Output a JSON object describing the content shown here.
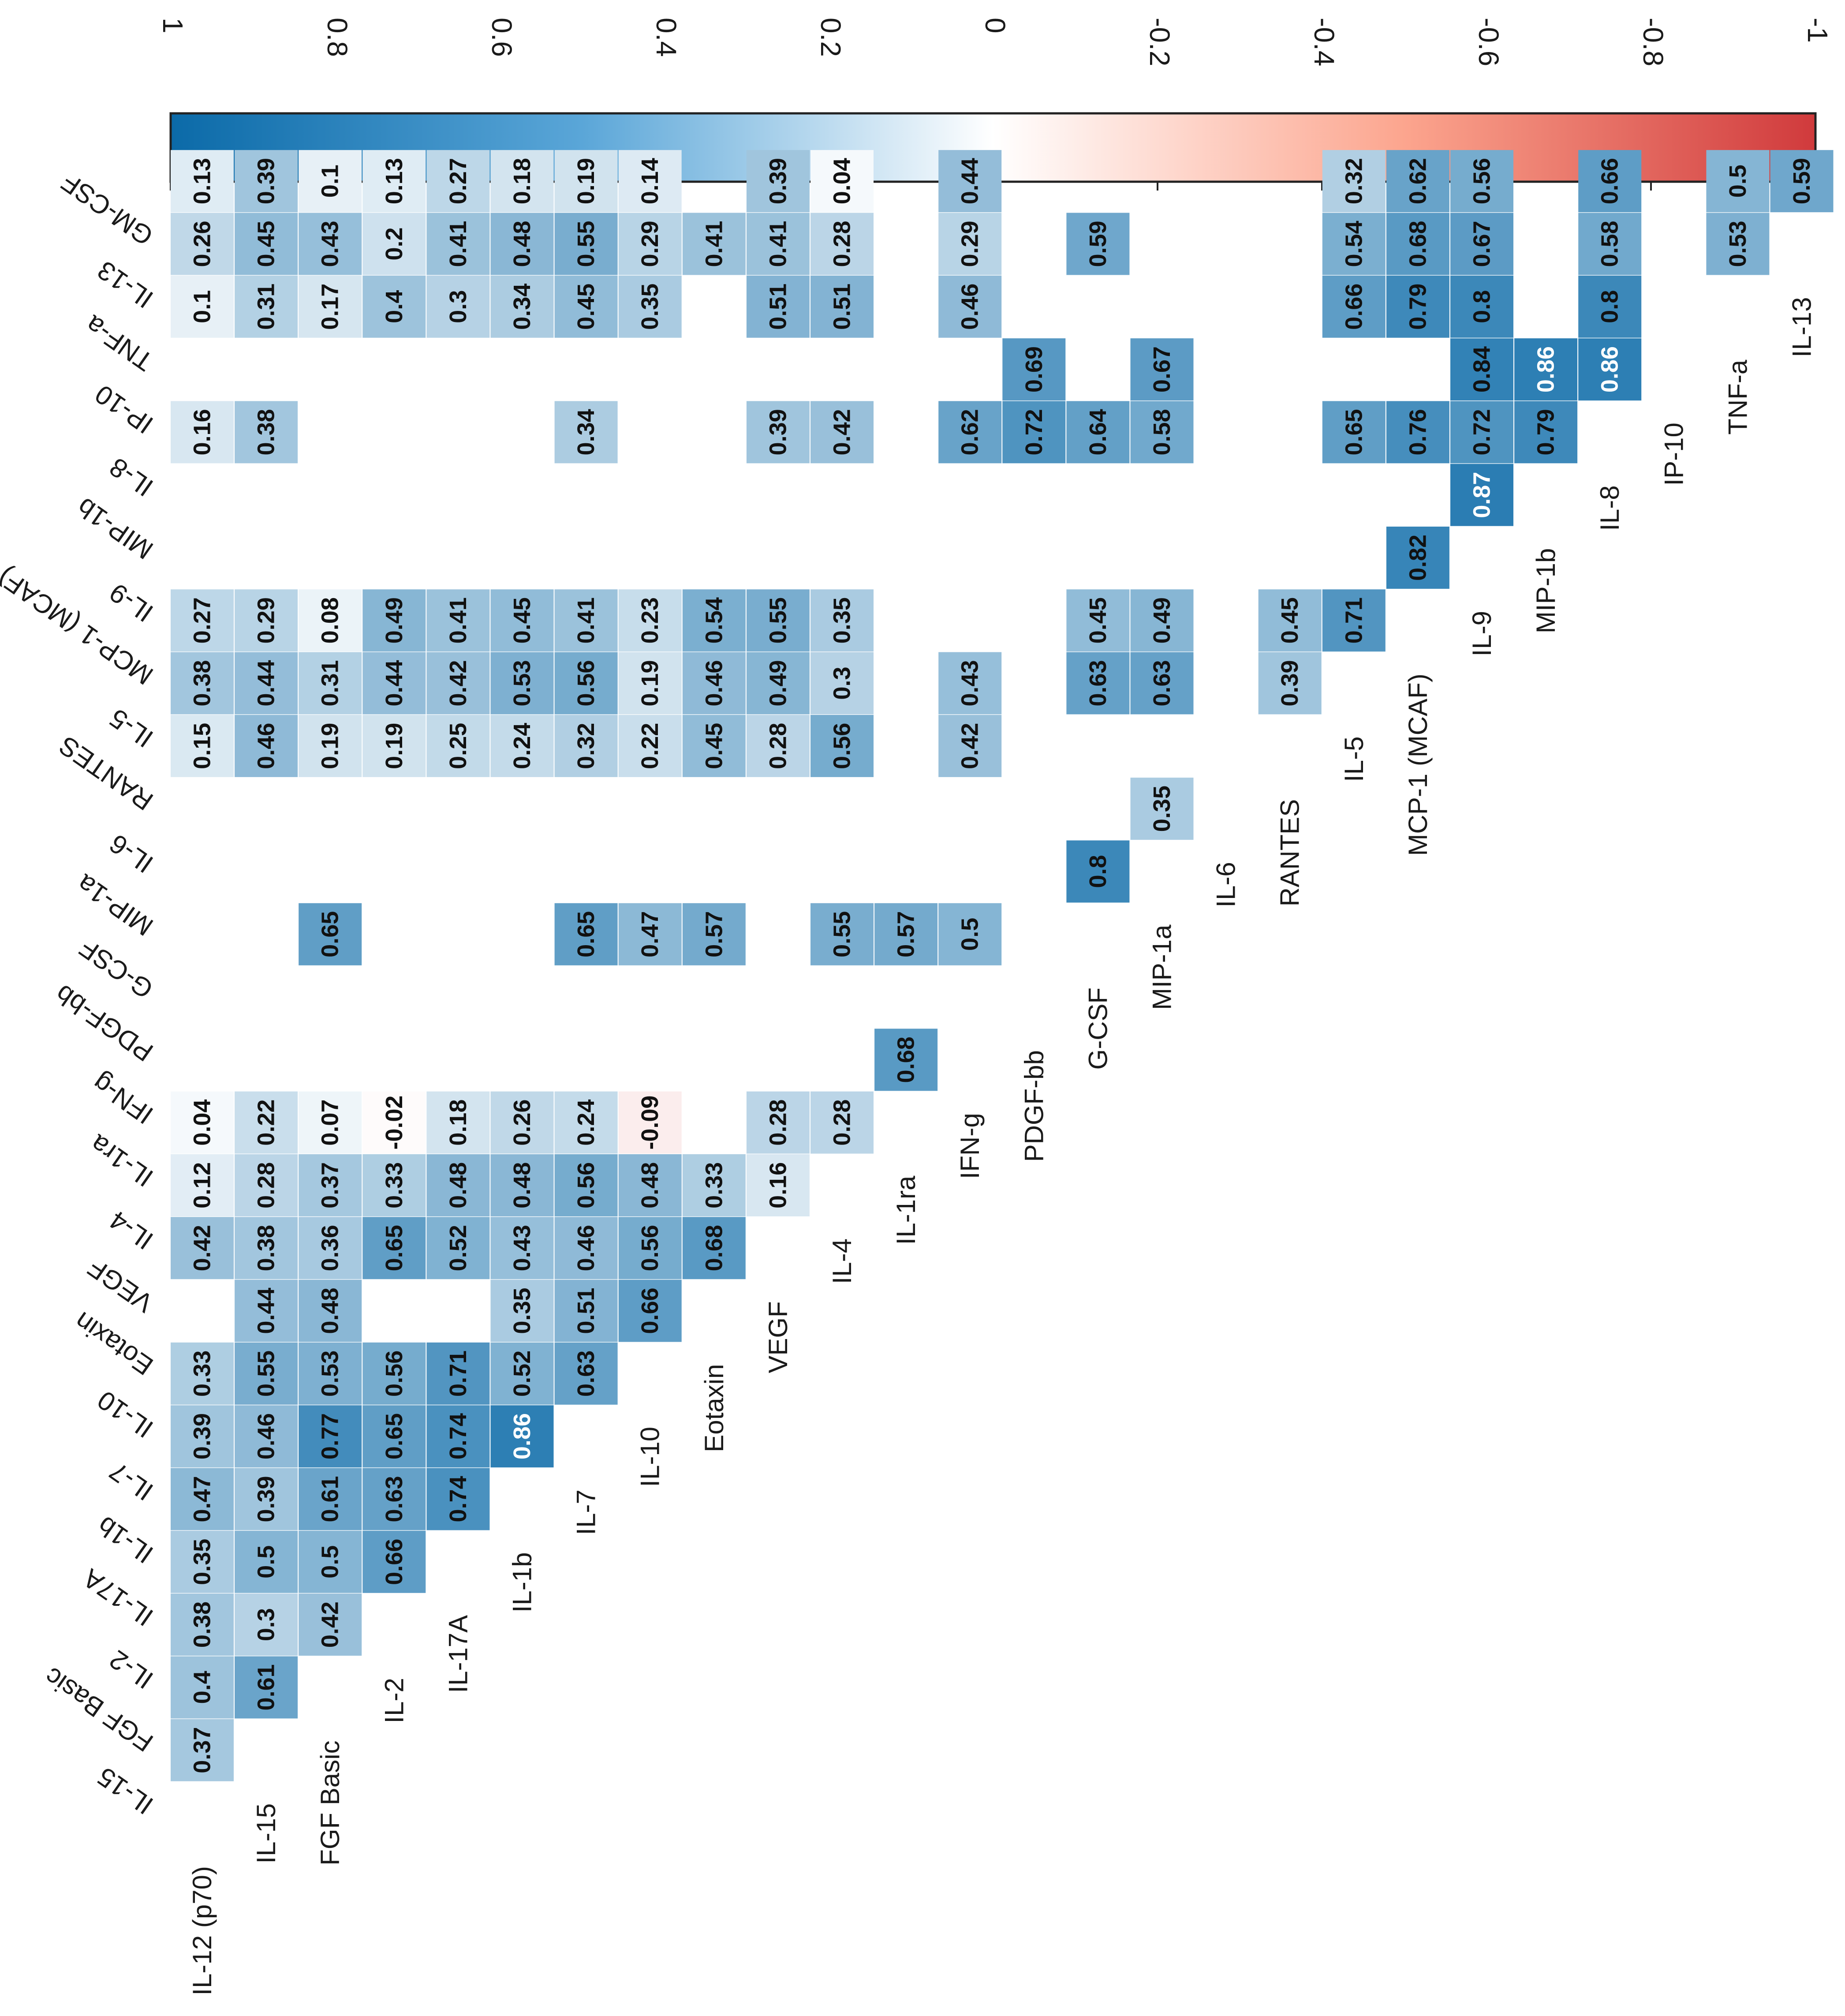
{
  "chart_data": {
    "type": "heatmap",
    "title": "",
    "orientation": "rotated-90-clockwise",
    "variables": [
      "IL-12 (p70)",
      "IL-15",
      "FGF Basic",
      "IL-2",
      "IL-17A",
      "IL-1b",
      "IL-7",
      "IL-10",
      "Eotaxin",
      "VEGF",
      "IL-4",
      "IL-1ra",
      "IFN-g",
      "PDGF-bb",
      "G-CSF",
      "MIP-1a",
      "IL-6",
      "RANTES",
      "IL-5",
      "MCP-1 (MCAF)",
      "IL-9",
      "MIP-1b",
      "IL-8",
      "IP-10",
      "TNF-a",
      "IL-13",
      "GM-CSF"
    ],
    "diagonal_labels": [
      "IL-12 (p70)",
      "IL-15",
      "FGF Basic",
      "IL-2",
      "IL-17A",
      "IL-1b",
      "IL-7",
      "IL-10",
      "Eotaxin",
      "VEGF",
      "IL-4",
      "IL-1ra",
      "IFN-g",
      "PDGF-bb",
      "G-CSF",
      "MIP-1a",
      "IL-6",
      "RANTES",
      "IL-5",
      "MCP-1 (MCAF)",
      "IL-9",
      "MIP-1b",
      "IL-8",
      "IP-10",
      "TNF-a",
      "IL-13"
    ],
    "column_labels": [
      "IL-15",
      "FGF Basic",
      "IL-2",
      "IL-17A",
      "IL-1b",
      "IL-7",
      "IL-10",
      "Eotaxin",
      "VEGF",
      "IL-4",
      "IL-1ra",
      "IFN-g",
      "PDGF-bb",
      "G-CSF",
      "MIP-1a",
      "IL-6",
      "RANTES",
      "IL-5",
      "MCP-1 (MCAF)",
      "IL-9",
      "MIP-1b",
      "IL-8",
      "IP-10",
      "TNF-a",
      "IL-13",
      "GM-CSF"
    ],
    "column_labels_rendered": [
      "IL-15",
      "FGF Basic",
      "IL-2",
      "IL-17A",
      "IL-1b",
      "IL-7",
      "IL-10",
      "Eotaxin",
      "VEGF",
      "IL-4",
      "IL-1ra",
      "IFN-g",
      "PDGF-bb",
      "G-CSF",
      "MIP-1a",
      "IL-6",
      "RANTES",
      "IL-5",
      "MCP-1 (MCAF)",
      "IL-9",
      "MIP-1b",
      "IL-8",
      "IP-10",
      "TNF-a",
      "IL-13",
      "GM-CSF"
    ],
    "colorbar": {
      "ticks": [
        "1",
        "0.8",
        "0.6",
        "0.4",
        "0.2",
        "0",
        "-0.2",
        "-0.4",
        "-0.6",
        "-0.8",
        "-1"
      ],
      "range": [
        -1,
        1
      ],
      "colors": {
        "positive": "#0b6aa8",
        "mid": "#ffffff",
        "negative": "#d03a3c"
      }
    },
    "cells": [
      {
        "row": "IL-12 (p70)",
        "col": "IL-15",
        "value": 0.37
      },
      {
        "row": "IL-12 (p70)",
        "col": "FGF Basic",
        "value": 0.4
      },
      {
        "row": "IL-12 (p70)",
        "col": "IL-2",
        "value": 0.38
      },
      {
        "row": "IL-12 (p70)",
        "col": "IL-17A",
        "value": 0.35
      },
      {
        "row": "IL-12 (p70)",
        "col": "IL-1b",
        "value": 0.47
      },
      {
        "row": "IL-12 (p70)",
        "col": "IL-7",
        "value": 0.39
      },
      {
        "row": "IL-12 (p70)",
        "col": "IL-10",
        "value": 0.33
      },
      {
        "row": "IL-12 (p70)",
        "col": "VEGF",
        "value": 0.42
      },
      {
        "row": "IL-12 (p70)",
        "col": "IL-4",
        "value": 0.12
      },
      {
        "row": "IL-12 (p70)",
        "col": "IL-1ra",
        "value": 0.04
      },
      {
        "row": "IL-12 (p70)",
        "col": "RANTES",
        "value": 0.15
      },
      {
        "row": "IL-12 (p70)",
        "col": "IL-5",
        "value": 0.38
      },
      {
        "row": "IL-12 (p70)",
        "col": "MCP-1 (MCAF)",
        "value": 0.27
      },
      {
        "row": "IL-12 (p70)",
        "col": "IL-8",
        "value": 0.16
      },
      {
        "row": "IL-12 (p70)",
        "col": "TNF-a",
        "value": 0.1
      },
      {
        "row": "IL-12 (p70)",
        "col": "IL-13",
        "value": 0.26
      },
      {
        "row": "IL-12 (p70)",
        "col": "GM-CSF",
        "value": 0.13
      },
      {
        "row": "IL-15",
        "col": "FGF Basic",
        "value": 0.61
      },
      {
        "row": "IL-15",
        "col": "IL-2",
        "value": 0.3
      },
      {
        "row": "IL-15",
        "col": "IL-17A",
        "value": 0.5
      },
      {
        "row": "IL-15",
        "col": "IL-1b",
        "value": 0.39
      },
      {
        "row": "IL-15",
        "col": "IL-7",
        "value": 0.46
      },
      {
        "row": "IL-15",
        "col": "IL-10",
        "value": 0.55
      },
      {
        "row": "IL-15",
        "col": "Eotaxin",
        "value": 0.44
      },
      {
        "row": "IL-15",
        "col": "VEGF",
        "value": 0.38
      },
      {
        "row": "IL-15",
        "col": "IL-4",
        "value": 0.28
      },
      {
        "row": "IL-15",
        "col": "IL-1ra",
        "value": 0.22
      },
      {
        "row": "IL-15",
        "col": "RANTES",
        "value": 0.46
      },
      {
        "row": "IL-15",
        "col": "IL-5",
        "value": 0.44
      },
      {
        "row": "IL-15",
        "col": "MCP-1 (MCAF)",
        "value": 0.29
      },
      {
        "row": "IL-15",
        "col": "IL-8",
        "value": 0.38
      },
      {
        "row": "IL-15",
        "col": "TNF-a",
        "value": 0.31
      },
      {
        "row": "IL-15",
        "col": "IL-13",
        "value": 0.45
      },
      {
        "row": "IL-15",
        "col": "GM-CSF",
        "value": 0.39
      },
      {
        "row": "FGF Basic",
        "col": "IL-2",
        "value": 0.42
      },
      {
        "row": "FGF Basic",
        "col": "IL-17A",
        "value": 0.5
      },
      {
        "row": "FGF Basic",
        "col": "IL-1b",
        "value": 0.61
      },
      {
        "row": "FGF Basic",
        "col": "IL-7",
        "value": 0.77
      },
      {
        "row": "FGF Basic",
        "col": "IL-10",
        "value": 0.53
      },
      {
        "row": "FGF Basic",
        "col": "Eotaxin",
        "value": 0.48
      },
      {
        "row": "FGF Basic",
        "col": "VEGF",
        "value": 0.36
      },
      {
        "row": "FGF Basic",
        "col": "IL-4",
        "value": 0.37
      },
      {
        "row": "FGF Basic",
        "col": "IL-1ra",
        "value": 0.07
      },
      {
        "row": "FGF Basic",
        "col": "G-CSF",
        "value": 0.65
      },
      {
        "row": "FGF Basic",
        "col": "RANTES",
        "value": 0.19
      },
      {
        "row": "FGF Basic",
        "col": "IL-5",
        "value": 0.31
      },
      {
        "row": "FGF Basic",
        "col": "MCP-1 (MCAF)",
        "value": 0.08
      },
      {
        "row": "FGF Basic",
        "col": "TNF-a",
        "value": 0.17
      },
      {
        "row": "FGF Basic",
        "col": "IL-13",
        "value": 0.43
      },
      {
        "row": "FGF Basic",
        "col": "GM-CSF",
        "value": 0.1
      },
      {
        "row": "IL-2",
        "col": "IL-17A",
        "value": 0.66
      },
      {
        "row": "IL-2",
        "col": "IL-1b",
        "value": 0.63
      },
      {
        "row": "IL-2",
        "col": "IL-7",
        "value": 0.65
      },
      {
        "row": "IL-2",
        "col": "IL-10",
        "value": 0.56
      },
      {
        "row": "IL-2",
        "col": "VEGF",
        "value": 0.65
      },
      {
        "row": "IL-2",
        "col": "IL-4",
        "value": 0.33
      },
      {
        "row": "IL-2",
        "col": "IL-1ra",
        "value": -0.02
      },
      {
        "row": "IL-2",
        "col": "RANTES",
        "value": 0.19
      },
      {
        "row": "IL-2",
        "col": "IL-5",
        "value": 0.44
      },
      {
        "row": "IL-2",
        "col": "MCP-1 (MCAF)",
        "value": 0.49
      },
      {
        "row": "IL-2",
        "col": "TNF-a",
        "value": 0.4
      },
      {
        "row": "IL-2",
        "col": "IL-13",
        "value": 0.2
      },
      {
        "row": "IL-2",
        "col": "GM-CSF",
        "value": 0.13
      },
      {
        "row": "IL-17A",
        "col": "IL-1b",
        "value": 0.74
      },
      {
        "row": "IL-17A",
        "col": "IL-7",
        "value": 0.74
      },
      {
        "row": "IL-17A",
        "col": "IL-10",
        "value": 0.71
      },
      {
        "row": "IL-17A",
        "col": "VEGF",
        "value": 0.52
      },
      {
        "row": "IL-17A",
        "col": "IL-4",
        "value": 0.48
      },
      {
        "row": "IL-17A",
        "col": "IL-1ra",
        "value": 0.18
      },
      {
        "row": "IL-17A",
        "col": "RANTES",
        "value": 0.25
      },
      {
        "row": "IL-17A",
        "col": "IL-5",
        "value": 0.42
      },
      {
        "row": "IL-17A",
        "col": "MCP-1 (MCAF)",
        "value": 0.41
      },
      {
        "row": "IL-17A",
        "col": "TNF-a",
        "value": 0.3
      },
      {
        "row": "IL-17A",
        "col": "IL-13",
        "value": 0.41
      },
      {
        "row": "IL-17A",
        "col": "GM-CSF",
        "value": 0.27
      },
      {
        "row": "IL-1b",
        "col": "IL-7",
        "value": 0.86
      },
      {
        "row": "IL-1b",
        "col": "IL-10",
        "value": 0.52
      },
      {
        "row": "IL-1b",
        "col": "Eotaxin",
        "value": 0.35
      },
      {
        "row": "IL-1b",
        "col": "VEGF",
        "value": 0.43
      },
      {
        "row": "IL-1b",
        "col": "IL-4",
        "value": 0.48
      },
      {
        "row": "IL-1b",
        "col": "IL-1ra",
        "value": 0.26
      },
      {
        "row": "IL-1b",
        "col": "RANTES",
        "value": 0.24
      },
      {
        "row": "IL-1b",
        "col": "IL-5",
        "value": 0.53
      },
      {
        "row": "IL-1b",
        "col": "MCP-1 (MCAF)",
        "value": 0.45
      },
      {
        "row": "IL-1b",
        "col": "TNF-a",
        "value": 0.34
      },
      {
        "row": "IL-1b",
        "col": "IL-13",
        "value": 0.48
      },
      {
        "row": "IL-1b",
        "col": "GM-CSF",
        "value": 0.18
      },
      {
        "row": "IL-7",
        "col": "IL-10",
        "value": 0.63
      },
      {
        "row": "IL-7",
        "col": "Eotaxin",
        "value": 0.51
      },
      {
        "row": "IL-7",
        "col": "VEGF",
        "value": 0.46
      },
      {
        "row": "IL-7",
        "col": "IL-4",
        "value": 0.56
      },
      {
        "row": "IL-7",
        "col": "IL-1ra",
        "value": 0.24
      },
      {
        "row": "IL-7",
        "col": "G-CSF",
        "value": 0.65
      },
      {
        "row": "IL-7",
        "col": "RANTES",
        "value": 0.32
      },
      {
        "row": "IL-7",
        "col": "IL-5",
        "value": 0.56
      },
      {
        "row": "IL-7",
        "col": "MCP-1 (MCAF)",
        "value": 0.41
      },
      {
        "row": "IL-7",
        "col": "IL-8",
        "value": 0.34
      },
      {
        "row": "IL-7",
        "col": "TNF-a",
        "value": 0.45
      },
      {
        "row": "IL-7",
        "col": "IL-13",
        "value": 0.55
      },
      {
        "row": "IL-7",
        "col": "GM-CSF",
        "value": 0.19
      },
      {
        "row": "IL-10",
        "col": "Eotaxin",
        "value": 0.66
      },
      {
        "row": "IL-10",
        "col": "VEGF",
        "value": 0.56
      },
      {
        "row": "IL-10",
        "col": "IL-4",
        "value": 0.48
      },
      {
        "row": "IL-10",
        "col": "IL-1ra",
        "value": -0.09
      },
      {
        "row": "IL-10",
        "col": "G-CSF",
        "value": 0.47
      },
      {
        "row": "IL-10",
        "col": "RANTES",
        "value": 0.22
      },
      {
        "row": "IL-10",
        "col": "IL-5",
        "value": 0.19
      },
      {
        "row": "IL-10",
        "col": "MCP-1 (MCAF)",
        "value": 0.23
      },
      {
        "row": "IL-10",
        "col": "TNF-a",
        "value": 0.35
      },
      {
        "row": "IL-10",
        "col": "IL-13",
        "value": 0.29
      },
      {
        "row": "IL-10",
        "col": "GM-CSF",
        "value": 0.14
      },
      {
        "row": "Eotaxin",
        "col": "VEGF",
        "value": 0.68
      },
      {
        "row": "Eotaxin",
        "col": "IL-4",
        "value": 0.33
      },
      {
        "row": "Eotaxin",
        "col": "G-CSF",
        "value": 0.57
      },
      {
        "row": "Eotaxin",
        "col": "RANTES",
        "value": 0.45
      },
      {
        "row": "Eotaxin",
        "col": "IL-5",
        "value": 0.46
      },
      {
        "row": "Eotaxin",
        "col": "MCP-1 (MCAF)",
        "value": 0.54
      },
      {
        "row": "Eotaxin",
        "col": "IL-13",
        "value": 0.41
      },
      {
        "row": "VEGF",
        "col": "IL-4",
        "value": 0.16
      },
      {
        "row": "VEGF",
        "col": "IL-1ra",
        "value": 0.28
      },
      {
        "row": "VEGF",
        "col": "RANTES",
        "value": 0.28
      },
      {
        "row": "VEGF",
        "col": "IL-5",
        "value": 0.49
      },
      {
        "row": "VEGF",
        "col": "MCP-1 (MCAF)",
        "value": 0.55
      },
      {
        "row": "VEGF",
        "col": "IL-8",
        "value": 0.39
      },
      {
        "row": "VEGF",
        "col": "TNF-a",
        "value": 0.51
      },
      {
        "row": "VEGF",
        "col": "IL-13",
        "value": 0.41
      },
      {
        "row": "VEGF",
        "col": "GM-CSF",
        "value": 0.39
      },
      {
        "row": "IL-4",
        "col": "IL-1ra",
        "value": 0.28
      },
      {
        "row": "IL-4",
        "col": "G-CSF",
        "value": 0.55
      },
      {
        "row": "IL-4",
        "col": "RANTES",
        "value": 0.56
      },
      {
        "row": "IL-4",
        "col": "IL-5",
        "value": 0.3
      },
      {
        "row": "IL-4",
        "col": "MCP-1 (MCAF)",
        "value": 0.35
      },
      {
        "row": "IL-4",
        "col": "IL-8",
        "value": 0.42
      },
      {
        "row": "IL-4",
        "col": "TNF-a",
        "value": 0.51
      },
      {
        "row": "IL-4",
        "col": "IL-13",
        "value": 0.28
      },
      {
        "row": "IL-4",
        "col": "GM-CSF",
        "value": 0.04
      },
      {
        "row": "IL-1ra",
        "col": "IFN-g",
        "value": 0.68
      },
      {
        "row": "IL-1ra",
        "col": "G-CSF",
        "value": 0.57
      },
      {
        "row": "IFN-g",
        "col": "G-CSF",
        "value": 0.5
      },
      {
        "row": "IFN-g",
        "col": "RANTES",
        "value": 0.42
      },
      {
        "row": "IFN-g",
        "col": "IL-5",
        "value": 0.43
      },
      {
        "row": "IFN-g",
        "col": "IL-8",
        "value": 0.62
      },
      {
        "row": "IFN-g",
        "col": "TNF-a",
        "value": 0.46
      },
      {
        "row": "IFN-g",
        "col": "IL-13",
        "value": 0.29
      },
      {
        "row": "IFN-g",
        "col": "GM-CSF",
        "value": 0.44
      },
      {
        "row": "PDGF-bb",
        "col": "IL-8",
        "value": 0.72
      },
      {
        "row": "PDGF-bb",
        "col": "IP-10",
        "value": 0.69
      },
      {
        "row": "G-CSF",
        "col": "MIP-1a",
        "value": 0.8
      },
      {
        "row": "G-CSF",
        "col": "IL-5",
        "value": 0.63
      },
      {
        "row": "G-CSF",
        "col": "MCP-1 (MCAF)",
        "value": 0.45
      },
      {
        "row": "G-CSF",
        "col": "IL-8",
        "value": 0.64
      },
      {
        "row": "G-CSF",
        "col": "IL-13",
        "value": 0.59
      },
      {
        "row": "MIP-1a",
        "col": "IL-6",
        "value": 0.35
      },
      {
        "row": "MIP-1a",
        "col": "IL-5",
        "value": 0.63
      },
      {
        "row": "MIP-1a",
        "col": "MCP-1 (MCAF)",
        "value": 0.49
      },
      {
        "row": "MIP-1a",
        "col": "IL-8",
        "value": 0.58
      },
      {
        "row": "MIP-1a",
        "col": "IP-10",
        "value": 0.67
      },
      {
        "row": "RANTES",
        "col": "IL-5",
        "value": 0.39
      },
      {
        "row": "RANTES",
        "col": "MCP-1 (MCAF)",
        "value": 0.45
      },
      {
        "row": "IL-5",
        "col": "MCP-1 (MCAF)",
        "value": 0.71
      },
      {
        "row": "IL-5",
        "col": "IL-8",
        "value": 0.65
      },
      {
        "row": "IL-5",
        "col": "TNF-a",
        "value": 0.66
      },
      {
        "row": "IL-5",
        "col": "IL-13",
        "value": 0.54
      },
      {
        "row": "IL-5",
        "col": "GM-CSF",
        "value": 0.32
      },
      {
        "row": "MCP-1 (MCAF)",
        "col": "IL-9",
        "value": 0.82
      },
      {
        "row": "MCP-1 (MCAF)",
        "col": "IL-8",
        "value": 0.76
      },
      {
        "row": "MCP-1 (MCAF)",
        "col": "TNF-a",
        "value": 0.79
      },
      {
        "row": "MCP-1 (MCAF)",
        "col": "IL-13",
        "value": 0.68
      },
      {
        "row": "MCP-1 (MCAF)",
        "col": "GM-CSF",
        "value": 0.62
      },
      {
        "row": "IL-9",
        "col": "MIP-1b",
        "value": 0.87
      },
      {
        "row": "IL-9",
        "col": "IL-8",
        "value": 0.72
      },
      {
        "row": "IL-9",
        "col": "IP-10",
        "value": 0.84
      },
      {
        "row": "IL-9",
        "col": "TNF-a",
        "value": 0.8
      },
      {
        "row": "IL-9",
        "col": "IL-13",
        "value": 0.67
      },
      {
        "row": "IL-9",
        "col": "GM-CSF",
        "value": 0.56
      },
      {
        "row": "MIP-1b",
        "col": "IL-8",
        "value": 0.79
      },
      {
        "row": "MIP-1b",
        "col": "IP-10",
        "value": 0.86
      },
      {
        "row": "IL-8",
        "col": "IP-10",
        "value": 0.86
      },
      {
        "row": "IL-8",
        "col": "TNF-a",
        "value": 0.8
      },
      {
        "row": "IL-8",
        "col": "IL-13",
        "value": 0.58
      },
      {
        "row": "IL-8",
        "col": "GM-CSF",
        "value": 0.66
      },
      {
        "row": "TNF-a",
        "col": "IL-13",
        "value": 0.53
      },
      {
        "row": "TNF-a",
        "col": "GM-CSF",
        "value": 0.5
      },
      {
        "row": "IL-13",
        "col": "GM-CSF",
        "value": 0.59
      }
    ]
  }
}
